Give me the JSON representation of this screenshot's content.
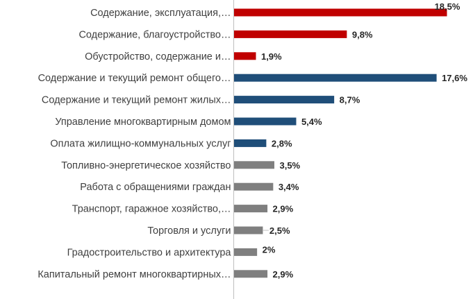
{
  "chart_data": {
    "type": "bar",
    "orientation": "horizontal",
    "categories": [
      "Содержание, эксплуатация,…",
      "Содержание, благоустройство…",
      "Обустройство, содержание и…",
      "Содержание и текущий ремонт общего…",
      "Содержание и текущий ремонт жилых…",
      "Управление многоквартирным домом",
      "Оплата жилищно-коммунальных услуг",
      "Топливно-энергетическое хозяйство",
      "Работа с обращениями граждан",
      "Транспорт, гаражное хозяйство,…",
      "Торговля и услуги",
      "Градостроительство и архитектура",
      "Капитальный ремонт многоквартирных…"
    ],
    "values": [
      18.5,
      9.8,
      1.9,
      17.6,
      8.7,
      5.4,
      2.8,
      3.5,
      3.4,
      2.9,
      2.5,
      2,
      2.9
    ],
    "value_labels": [
      "18,5%",
      "9,8%",
      "1,9%",
      "17,6%",
      "8,7%",
      "5,4%",
      "2,8%",
      "3,5%",
      "3,4%",
      "2,9%",
      "2,5%",
      "2%",
      "2,9%"
    ],
    "bar_colors": [
      "#c00000",
      "#c00000",
      "#c00000",
      "#1f4e79",
      "#1f4e79",
      "#1f4e79",
      "#1f4e79",
      "#7f7f7f",
      "#7f7f7f",
      "#7f7f7f",
      "#7f7f7f",
      "#7f7f7f",
      "#7f7f7f"
    ],
    "xlim": [
      0,
      18.5
    ],
    "grid": false,
    "legend": "none",
    "title": "",
    "xlabel": "",
    "ylabel": ""
  }
}
